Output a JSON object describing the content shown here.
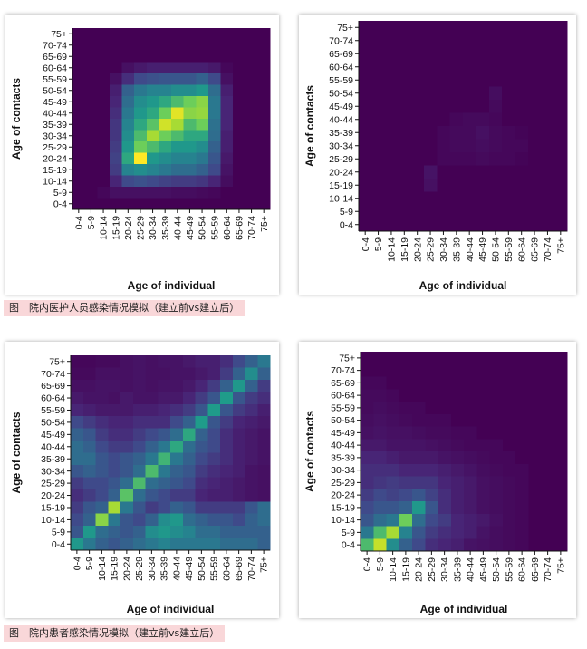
{
  "captions": {
    "staff": "图丨院内医护人员感染情况模拟（建立前vs建立后）",
    "patients": "图丨院内患者感染情况模拟（建立前vs建立后）"
  },
  "colorscale": [
    "#440154",
    "#482777",
    "#3f4a8a",
    "#31678e",
    "#26838f",
    "#1f9d8a",
    "#6cce5a",
    "#b6de2b",
    "#fee825"
  ],
  "chart_data": [
    {
      "type": "heatmap",
      "id": "staff_before",
      "xlabel": "Age of individual",
      "ylabel": "Age of contacts",
      "x_categories": [
        "0-4",
        "5-9",
        "10-14",
        "15-19",
        "20-24",
        "25-29",
        "30-34",
        "35-39",
        "40-44",
        "45-49",
        "50-54",
        "55-59",
        "60-64",
        "65-69",
        "70-74",
        "75+"
      ],
      "y_categories": [
        "0-4",
        "5-9",
        "10-14",
        "15-19",
        "20-24",
        "25-29",
        "30-34",
        "35-39",
        "40-44",
        "45-49",
        "50-54",
        "55-59",
        "60-64",
        "65-69",
        "70-74",
        "75+"
      ],
      "values_order": "rows from y=75+ (top) down to y=0-4 (bottom); columns x=0-4 to 75+",
      "values": [
        [
          0,
          0,
          0,
          0,
          0,
          0,
          0,
          0,
          0,
          0,
          0,
          0,
          0,
          0,
          0,
          0
        ],
        [
          0,
          0,
          0,
          0,
          0,
          0,
          0,
          0,
          0,
          0,
          0,
          0,
          0,
          0,
          0,
          0
        ],
        [
          0,
          0,
          0,
          0,
          0,
          0,
          0,
          0,
          0,
          0,
          0,
          0,
          0,
          0,
          0,
          0
        ],
        [
          0,
          0,
          0,
          0,
          0.05,
          0.08,
          0.1,
          0.1,
          0.1,
          0.1,
          0.1,
          0.08,
          0.02,
          0,
          0,
          0
        ],
        [
          0,
          0,
          0,
          0.05,
          0.15,
          0.25,
          0.28,
          0.3,
          0.3,
          0.3,
          0.35,
          0.25,
          0.05,
          0,
          0,
          0
        ],
        [
          0,
          0,
          0,
          0.1,
          0.35,
          0.45,
          0.5,
          0.5,
          0.55,
          0.55,
          0.6,
          0.4,
          0.1,
          0,
          0,
          0
        ],
        [
          0,
          0,
          0,
          0.12,
          0.4,
          0.55,
          0.6,
          0.65,
          0.7,
          0.75,
          0.8,
          0.45,
          0.12,
          0,
          0,
          0
        ],
        [
          0,
          0,
          0,
          0.15,
          0.45,
          0.6,
          0.65,
          0.75,
          0.95,
          0.8,
          0.82,
          0.45,
          0.12,
          0,
          0,
          0
        ],
        [
          0,
          0,
          0,
          0.18,
          0.5,
          0.65,
          0.72,
          0.92,
          0.85,
          0.7,
          0.75,
          0.42,
          0.12,
          0,
          0,
          0
        ],
        [
          0,
          0,
          0,
          0.18,
          0.55,
          0.7,
          0.85,
          0.75,
          0.7,
          0.65,
          0.65,
          0.4,
          0.1,
          0,
          0,
          0
        ],
        [
          0,
          0,
          0,
          0.2,
          0.6,
          0.75,
          0.7,
          0.65,
          0.6,
          0.6,
          0.55,
          0.35,
          0.1,
          0,
          0,
          0
        ],
        [
          0,
          0,
          0,
          0.22,
          0.65,
          1.0,
          0.6,
          0.55,
          0.5,
          0.5,
          0.45,
          0.3,
          0.08,
          0,
          0,
          0
        ],
        [
          0,
          0,
          0,
          0.2,
          0.5,
          0.55,
          0.5,
          0.45,
          0.4,
          0.4,
          0.35,
          0.25,
          0.06,
          0,
          0,
          0
        ],
        [
          0,
          0,
          0,
          0.12,
          0.25,
          0.28,
          0.25,
          0.22,
          0.2,
          0.2,
          0.18,
          0.12,
          0.04,
          0,
          0,
          0
        ],
        [
          0,
          0,
          0.02,
          0.05,
          0.05,
          0.05,
          0.05,
          0.05,
          0.04,
          0.04,
          0.03,
          0.02,
          0,
          0,
          0,
          0
        ],
        [
          0,
          0,
          0,
          0,
          0,
          0,
          0,
          0,
          0,
          0,
          0,
          0,
          0,
          0,
          0,
          0
        ]
      ]
    },
    {
      "type": "heatmap",
      "id": "staff_after",
      "xlabel": "Age of individual",
      "ylabel": "Age of contacts",
      "x_categories": [
        "0-4",
        "5-9",
        "10-14",
        "15-19",
        "20-24",
        "25-29",
        "30-34",
        "35-39",
        "40-44",
        "45-49",
        "50-54",
        "55-59",
        "60-64",
        "65-69",
        "70-74",
        "75+"
      ],
      "y_categories": [
        "0-4",
        "5-9",
        "10-14",
        "15-19",
        "20-24",
        "25-29",
        "30-34",
        "35-39",
        "40-44",
        "45-49",
        "50-54",
        "55-59",
        "60-64",
        "65-69",
        "70-74",
        "75+"
      ],
      "values_order": "rows from y=75+ (top) down to y=0-4 (bottom); columns x=0-4 to 75+",
      "values": [
        [
          0,
          0,
          0,
          0,
          0,
          0,
          0,
          0,
          0,
          0,
          0,
          0,
          0,
          0,
          0,
          0
        ],
        [
          0,
          0,
          0,
          0,
          0,
          0,
          0,
          0,
          0,
          0,
          0,
          0,
          0,
          0,
          0,
          0
        ],
        [
          0,
          0,
          0,
          0,
          0,
          0,
          0,
          0,
          0,
          0,
          0,
          0,
          0,
          0,
          0,
          0
        ],
        [
          0,
          0,
          0,
          0,
          0,
          0,
          0,
          0,
          0,
          0,
          0,
          0,
          0,
          0,
          0,
          0
        ],
        [
          0,
          0,
          0,
          0,
          0,
          0,
          0,
          0,
          0,
          0,
          0,
          0,
          0,
          0,
          0,
          0
        ],
        [
          0,
          0,
          0,
          0,
          0,
          0,
          0,
          0,
          0,
          0,
          0.04,
          0,
          0,
          0,
          0,
          0
        ],
        [
          0,
          0,
          0,
          0,
          0,
          0,
          0,
          0,
          0,
          0,
          0.03,
          0,
          0,
          0,
          0,
          0
        ],
        [
          0,
          0,
          0,
          0,
          0,
          0,
          0,
          0.02,
          0.03,
          0.03,
          0.02,
          0,
          0,
          0,
          0,
          0
        ],
        [
          0,
          0,
          0,
          0,
          0,
          0,
          0.02,
          0.03,
          0.03,
          0.05,
          0.03,
          0.02,
          0.01,
          0,
          0,
          0
        ],
        [
          0,
          0,
          0,
          0,
          0,
          0,
          0.02,
          0.03,
          0.03,
          0.04,
          0.03,
          0.02,
          0.02,
          0,
          0,
          0
        ],
        [
          0,
          0,
          0,
          0,
          0,
          0,
          0.02,
          0.02,
          0.02,
          0.03,
          0.02,
          0.02,
          0.01,
          0,
          0,
          0
        ],
        [
          0,
          0,
          0,
          0,
          0,
          0.06,
          0,
          0,
          0,
          0,
          0,
          0,
          0,
          0,
          0,
          0
        ],
        [
          0,
          0,
          0,
          0,
          0,
          0.05,
          0,
          0,
          0,
          0,
          0,
          0,
          0,
          0,
          0,
          0
        ],
        [
          0,
          0,
          0,
          0,
          0,
          0,
          0,
          0,
          0,
          0,
          0,
          0,
          0,
          0,
          0,
          0
        ],
        [
          0,
          0,
          0,
          0,
          0,
          0,
          0,
          0,
          0,
          0,
          0,
          0,
          0,
          0,
          0,
          0
        ],
        [
          0,
          0,
          0,
          0,
          0,
          0,
          0,
          0,
          0,
          0,
          0,
          0,
          0,
          0,
          0,
          0
        ]
      ]
    },
    {
      "type": "heatmap",
      "id": "patients_before",
      "xlabel": "Age of individual",
      "ylabel": "Age of contacts",
      "x_categories": [
        "0-4",
        "5-9",
        "10-14",
        "15-19",
        "20-24",
        "25-29",
        "30-34",
        "35-39",
        "40-44",
        "45-49",
        "50-54",
        "55-59",
        "60-64",
        "65-69",
        "70-74",
        "75+"
      ],
      "y_categories": [
        "0-4",
        "5-9",
        "10-14",
        "15-19",
        "20-24",
        "25-29",
        "30-34",
        "35-39",
        "40-44",
        "45-49",
        "50-54",
        "55-59",
        "60-64",
        "65-69",
        "70-74",
        "75+"
      ],
      "values_order": "rows from y=75+ (top) down to y=0-4 (bottom); columns x=0-4 to 75+",
      "values": [
        [
          0.02,
          0.02,
          0.03,
          0.03,
          0.05,
          0.06,
          0.05,
          0.06,
          0.06,
          0.08,
          0.1,
          0.1,
          0.15,
          0.25,
          0.35,
          0.45
        ],
        [
          0.03,
          0.03,
          0.05,
          0.05,
          0.05,
          0.06,
          0.05,
          0.05,
          0.06,
          0.06,
          0.08,
          0.1,
          0.2,
          0.35,
          0.55,
          0.35
        ],
        [
          0.05,
          0.05,
          0.06,
          0.06,
          0.05,
          0.06,
          0.05,
          0.06,
          0.06,
          0.08,
          0.12,
          0.2,
          0.35,
          0.6,
          0.35,
          0.2
        ],
        [
          0.08,
          0.06,
          0.06,
          0.05,
          0.08,
          0.06,
          0.06,
          0.08,
          0.08,
          0.12,
          0.2,
          0.3,
          0.62,
          0.3,
          0.2,
          0.15
        ],
        [
          0.12,
          0.1,
          0.08,
          0.08,
          0.08,
          0.1,
          0.1,
          0.12,
          0.15,
          0.2,
          0.3,
          0.62,
          0.3,
          0.2,
          0.15,
          0.1
        ],
        [
          0.25,
          0.2,
          0.15,
          0.12,
          0.12,
          0.15,
          0.15,
          0.15,
          0.25,
          0.35,
          0.62,
          0.3,
          0.2,
          0.12,
          0.1,
          0.08
        ],
        [
          0.35,
          0.3,
          0.2,
          0.15,
          0.15,
          0.2,
          0.25,
          0.3,
          0.4,
          0.65,
          0.35,
          0.25,
          0.15,
          0.1,
          0.08,
          0.06
        ],
        [
          0.4,
          0.35,
          0.25,
          0.2,
          0.2,
          0.25,
          0.35,
          0.45,
          0.65,
          0.4,
          0.3,
          0.25,
          0.15,
          0.1,
          0.08,
          0.06
        ],
        [
          0.4,
          0.4,
          0.3,
          0.25,
          0.3,
          0.35,
          0.45,
          0.68,
          0.45,
          0.35,
          0.25,
          0.2,
          0.15,
          0.1,
          0.08,
          0.06
        ],
        [
          0.3,
          0.35,
          0.3,
          0.25,
          0.3,
          0.4,
          0.7,
          0.45,
          0.35,
          0.3,
          0.2,
          0.15,
          0.12,
          0.1,
          0.06,
          0.05
        ],
        [
          0.2,
          0.25,
          0.25,
          0.3,
          0.4,
          0.7,
          0.4,
          0.35,
          0.3,
          0.25,
          0.15,
          0.12,
          0.1,
          0.08,
          0.06,
          0.05
        ],
        [
          0.15,
          0.2,
          0.25,
          0.35,
          0.72,
          0.4,
          0.3,
          0.25,
          0.2,
          0.2,
          0.12,
          0.1,
          0.1,
          0.08,
          0.06,
          0.05
        ],
        [
          0.2,
          0.3,
          0.35,
          0.85,
          0.45,
          0.3,
          0.2,
          0.25,
          0.35,
          0.3,
          0.2,
          0.2,
          0.2,
          0.2,
          0.3,
          0.4
        ],
        [
          0.25,
          0.35,
          0.8,
          0.45,
          0.3,
          0.25,
          0.35,
          0.55,
          0.6,
          0.4,
          0.35,
          0.3,
          0.3,
          0.25,
          0.35,
          0.4
        ],
        [
          0.3,
          0.6,
          0.4,
          0.35,
          0.3,
          0.35,
          0.55,
          0.6,
          0.55,
          0.5,
          0.4,
          0.4,
          0.35,
          0.35,
          0.35,
          0.35
        ],
        [
          0.6,
          0.45,
          0.35,
          0.3,
          0.35,
          0.4,
          0.45,
          0.5,
          0.45,
          0.45,
          0.45,
          0.45,
          0.4,
          0.4,
          0.4,
          0.35
        ]
      ]
    },
    {
      "type": "heatmap",
      "id": "patients_after",
      "xlabel": "Age of individual",
      "ylabel": "Age of contacts",
      "x_categories": [
        "0-4",
        "5-9",
        "10-14",
        "15-19",
        "20-24",
        "25-29",
        "30-34",
        "35-39",
        "40-44",
        "45-49",
        "50-54",
        "55-59",
        "60-64",
        "65-69",
        "70-74",
        "75+"
      ],
      "y_categories": [
        "0-4",
        "5-9",
        "10-14",
        "15-19",
        "20-24",
        "25-29",
        "30-34",
        "35-39",
        "40-44",
        "45-49",
        "50-54",
        "55-59",
        "60-64",
        "65-69",
        "70-74",
        "75+"
      ],
      "values_order": "rows from y=75+ (top) down to y=0-4 (bottom); columns x=0-4 to 75+",
      "values": [
        [
          0,
          0,
          0,
          0,
          0,
          0,
          0,
          0,
          0,
          0,
          0,
          0,
          0,
          0,
          0,
          0
        ],
        [
          0,
          0,
          0,
          0,
          0,
          0,
          0,
          0,
          0,
          0,
          0,
          0,
          0,
          0,
          0,
          0
        ],
        [
          0.02,
          0.02,
          0,
          0,
          0,
          0,
          0,
          0,
          0,
          0,
          0,
          0,
          0,
          0,
          0,
          0
        ],
        [
          0.03,
          0.03,
          0.02,
          0,
          0,
          0,
          0,
          0,
          0,
          0,
          0,
          0,
          0,
          0,
          0,
          0
        ],
        [
          0.03,
          0.04,
          0.03,
          0.02,
          0.02,
          0,
          0,
          0,
          0,
          0,
          0,
          0,
          0,
          0,
          0,
          0
        ],
        [
          0.04,
          0.05,
          0.04,
          0.03,
          0.02,
          0.02,
          0.02,
          0,
          0,
          0,
          0,
          0,
          0,
          0,
          0,
          0
        ],
        [
          0.05,
          0.06,
          0.05,
          0.05,
          0.04,
          0.03,
          0.03,
          0.02,
          0.02,
          0,
          0,
          0,
          0,
          0,
          0,
          0
        ],
        [
          0.08,
          0.08,
          0.06,
          0.06,
          0.06,
          0.05,
          0.04,
          0.03,
          0.02,
          0.02,
          0.02,
          0,
          0,
          0,
          0,
          0
        ],
        [
          0.12,
          0.12,
          0.1,
          0.08,
          0.08,
          0.08,
          0.06,
          0.05,
          0.04,
          0.03,
          0.02,
          0.02,
          0,
          0,
          0,
          0
        ],
        [
          0.15,
          0.15,
          0.15,
          0.12,
          0.12,
          0.12,
          0.1,
          0.08,
          0.06,
          0.04,
          0.03,
          0.02,
          0.02,
          0,
          0,
          0
        ],
        [
          0.15,
          0.18,
          0.2,
          0.18,
          0.18,
          0.18,
          0.12,
          0.1,
          0.08,
          0.05,
          0.04,
          0.03,
          0.02,
          0,
          0,
          0
        ],
        [
          0.2,
          0.25,
          0.22,
          0.25,
          0.3,
          0.22,
          0.15,
          0.1,
          0.08,
          0.05,
          0.04,
          0.03,
          0.02,
          0,
          0,
          0
        ],
        [
          0.25,
          0.3,
          0.3,
          0.35,
          0.6,
          0.3,
          0.15,
          0.1,
          0.08,
          0.05,
          0.04,
          0.03,
          0.02,
          0,
          0,
          0
        ],
        [
          0.3,
          0.4,
          0.45,
          0.75,
          0.4,
          0.25,
          0.2,
          0.12,
          0.1,
          0.08,
          0.05,
          0.03,
          0.02,
          0,
          0,
          0
        ],
        [
          0.45,
          0.7,
          0.85,
          0.5,
          0.3,
          0.2,
          0.15,
          0.12,
          0.1,
          0.06,
          0.04,
          0.03,
          0.02,
          0,
          0,
          0
        ],
        [
          0.7,
          0.9,
          0.55,
          0.35,
          0.25,
          0.15,
          0.12,
          0.1,
          0.06,
          0.05,
          0.04,
          0.03,
          0.02,
          0,
          0,
          0
        ]
      ]
    }
  ]
}
